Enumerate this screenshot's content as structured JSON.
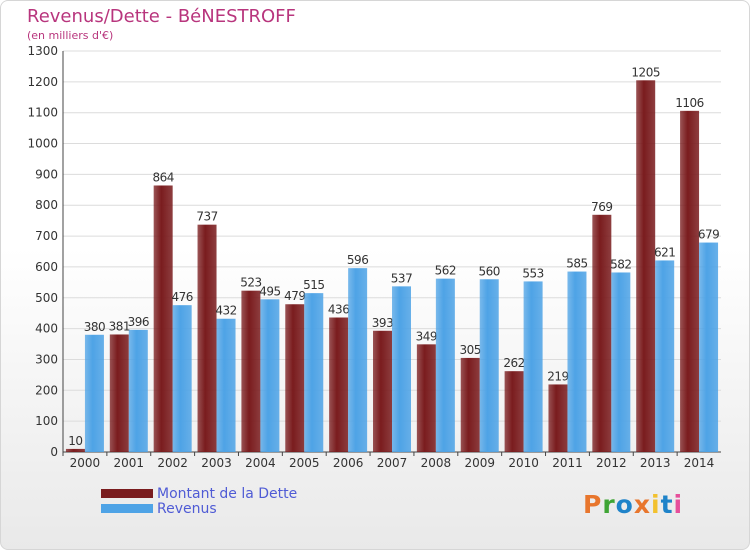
{
  "chart_data": {
    "type": "bar",
    "title": "Revenus/Dette - BéNESTROFF",
    "subtitle": "(en milliers d'€)",
    "categories": [
      "2000",
      "2001",
      "2002",
      "2003",
      "2004",
      "2005",
      "2006",
      "2007",
      "2008",
      "2009",
      "2010",
      "2011",
      "2012",
      "2013",
      "2014"
    ],
    "series": [
      {
        "name": "Montant de la Dette",
        "color": "#7a1c1e",
        "values": [
          10,
          381,
          864,
          737,
          523,
          479,
          436,
          393,
          349,
          305,
          262,
          219,
          769,
          1205,
          1106
        ]
      },
      {
        "name": "Revenus",
        "color": "#4ea3e6",
        "values": [
          380,
          396,
          476,
          432,
          495,
          515,
          596,
          537,
          562,
          560,
          553,
          585,
          582,
          621,
          679
        ]
      }
    ],
    "ylim": [
      0,
      1300
    ],
    "yticks": [
      0,
      100,
      200,
      300,
      400,
      500,
      600,
      700,
      800,
      900,
      1000,
      1100,
      1200,
      1300
    ],
    "grid": true,
    "legend_position": "bottom-left"
  },
  "logo": {
    "text": "Proxiti",
    "colors": [
      "#e8762d",
      "#3fa535",
      "#1f83c9",
      "#e8762d",
      "#f2c12e",
      "#1f83c9",
      "#e64f9b"
    ]
  }
}
